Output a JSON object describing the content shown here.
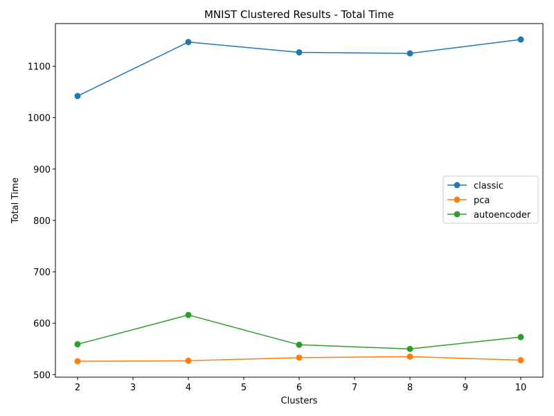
{
  "chart_data": {
    "type": "line",
    "title": "MNIST Clustered Results - Total Time",
    "xlabel": "Clusters",
    "ylabel": "Total Time",
    "x": [
      2,
      4,
      6,
      8,
      10
    ],
    "xlim": [
      1.6,
      10.4
    ],
    "ylim": [
      495,
      1183
    ],
    "x_ticks": [
      2,
      3,
      4,
      5,
      6,
      7,
      8,
      9,
      10
    ],
    "y_ticks": [
      500,
      600,
      700,
      800,
      900,
      1000,
      1100
    ],
    "grid": false,
    "legend_position": "center-right",
    "marker": "circle",
    "series": [
      {
        "name": "classic",
        "color": "#1f77b4",
        "values": [
          1042,
          1147,
          1127,
          1125,
          1152
        ]
      },
      {
        "name": "pca",
        "color": "#ff7f0e",
        "values": [
          526,
          527,
          533,
          535,
          528
        ]
      },
      {
        "name": "autoencoder",
        "color": "#2ca02c",
        "values": [
          559,
          616,
          558,
          550,
          573
        ]
      }
    ]
  }
}
